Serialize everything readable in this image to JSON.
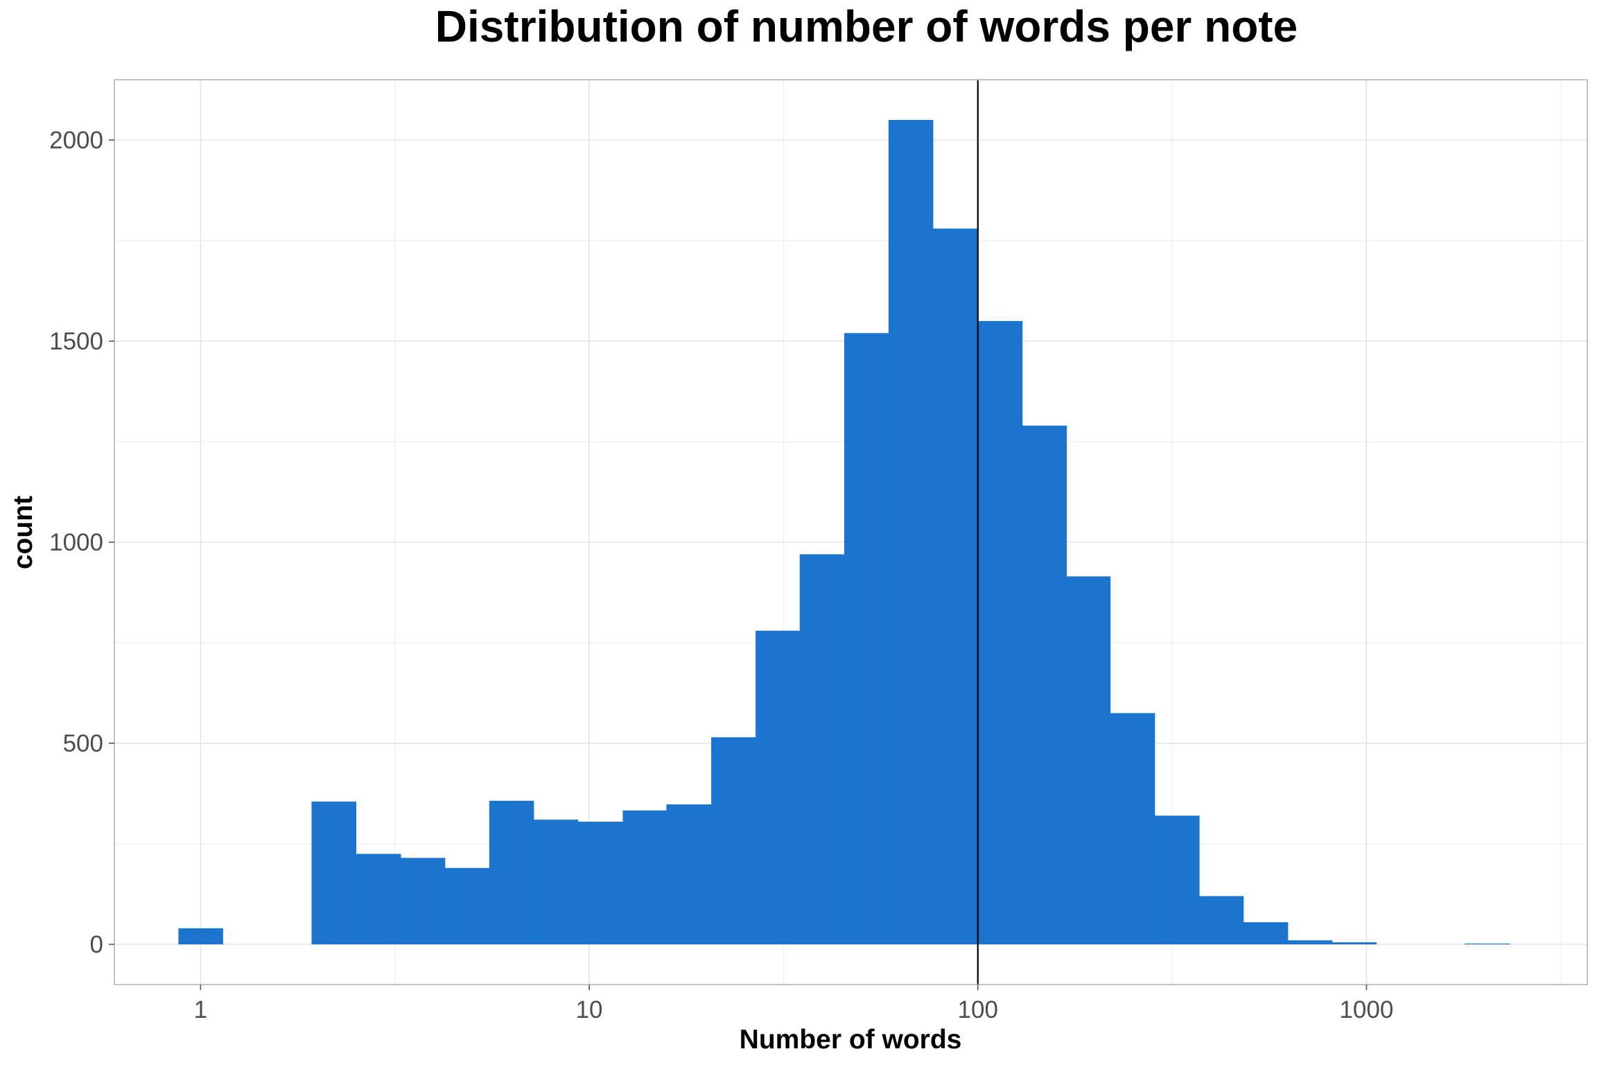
{
  "chart_data": {
    "type": "bar",
    "title": "Distribution of number of words per note",
    "xlabel": "Number of words",
    "ylabel": "count",
    "x_scale": "log10",
    "xlim": [
      0.6,
      3700
    ],
    "ylim": [
      -100,
      2150
    ],
    "x_ticks": [
      {
        "value": 1,
        "label": "1"
      },
      {
        "value": 10,
        "label": "10"
      },
      {
        "value": 100,
        "label": "100"
      },
      {
        "value": 1000,
        "label": "1000"
      }
    ],
    "y_ticks": [
      {
        "value": 0,
        "label": "0"
      },
      {
        "value": 500,
        "label": "500"
      },
      {
        "value": 1000,
        "label": "1000"
      },
      {
        "value": 1500,
        "label": "1500"
      },
      {
        "value": 2000,
        "label": "2000"
      }
    ],
    "grid": true,
    "bar_color": "#1b75cf",
    "reference_line": {
      "x": 100,
      "color": "#000000"
    },
    "bins": [
      {
        "x0": 0.877,
        "x1": 1.14,
        "count": 40
      },
      {
        "x0": 1.14,
        "x1": 1.48,
        "count": 0
      },
      {
        "x0": 1.48,
        "x1": 1.93,
        "count": 0
      },
      {
        "x0": 1.93,
        "x1": 2.51,
        "count": 355
      },
      {
        "x0": 2.51,
        "x1": 3.27,
        "count": 225
      },
      {
        "x0": 3.27,
        "x1": 4.25,
        "count": 215
      },
      {
        "x0": 4.25,
        "x1": 5.53,
        "count": 190
      },
      {
        "x0": 5.53,
        "x1": 7.19,
        "count": 357
      },
      {
        "x0": 7.19,
        "x1": 9.35,
        "count": 310
      },
      {
        "x0": 9.35,
        "x1": 12.2,
        "count": 305
      },
      {
        "x0": 12.2,
        "x1": 15.8,
        "count": 333
      },
      {
        "x0": 15.8,
        "x1": 20.6,
        "count": 348
      },
      {
        "x0": 20.6,
        "x1": 26.8,
        "count": 515
      },
      {
        "x0": 26.8,
        "x1": 34.8,
        "count": 780
      },
      {
        "x0": 34.8,
        "x1": 45.3,
        "count": 970
      },
      {
        "x0": 45.3,
        "x1": 58.9,
        "count": 1520
      },
      {
        "x0": 58.9,
        "x1": 76.6,
        "count": 2050
      },
      {
        "x0": 76.6,
        "x1": 99.6,
        "count": 1780
      },
      {
        "x0": 99.6,
        "x1": 130,
        "count": 1550
      },
      {
        "x0": 130,
        "x1": 169,
        "count": 1290
      },
      {
        "x0": 169,
        "x1": 219,
        "count": 915
      },
      {
        "x0": 219,
        "x1": 285,
        "count": 575
      },
      {
        "x0": 285,
        "x1": 371,
        "count": 320
      },
      {
        "x0": 371,
        "x1": 482,
        "count": 120
      },
      {
        "x0": 482,
        "x1": 627,
        "count": 55
      },
      {
        "x0": 627,
        "x1": 815,
        "count": 10
      },
      {
        "x0": 815,
        "x1": 1060,
        "count": 5
      },
      {
        "x0": 1060,
        "x1": 1380,
        "count": 0
      },
      {
        "x0": 1380,
        "x1": 1790,
        "count": 0
      },
      {
        "x0": 1790,
        "x1": 2330,
        "count": 2
      }
    ]
  }
}
